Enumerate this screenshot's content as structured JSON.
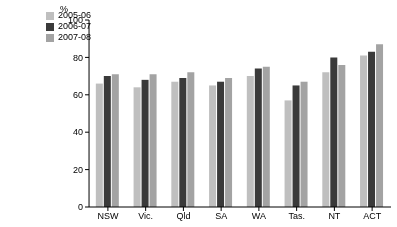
{
  "chart_data": {
    "type": "bar",
    "y_label": "%",
    "categories": [
      "NSW",
      "Vic.",
      "Qld",
      "SA",
      "WA",
      "Tas.",
      "NT",
      "ACT"
    ],
    "series": [
      {
        "name": "2005-06",
        "color": "#bfbfbf",
        "values": [
          66,
          64,
          67,
          65,
          70,
          57,
          72,
          81
        ]
      },
      {
        "name": "2006-07",
        "color": "#3a3a3a",
        "values": [
          70,
          68,
          69,
          67,
          74,
          65,
          80,
          83
        ]
      },
      {
        "name": "2007-08",
        "color": "#a3a3a3",
        "values": [
          71,
          71,
          72,
          69,
          75,
          67,
          76,
          87
        ]
      }
    ],
    "ylim": [
      0,
      100
    ],
    "yticks": [
      0,
      20,
      40,
      60,
      80,
      100
    ],
    "grid": false,
    "legend": "top-left"
  }
}
